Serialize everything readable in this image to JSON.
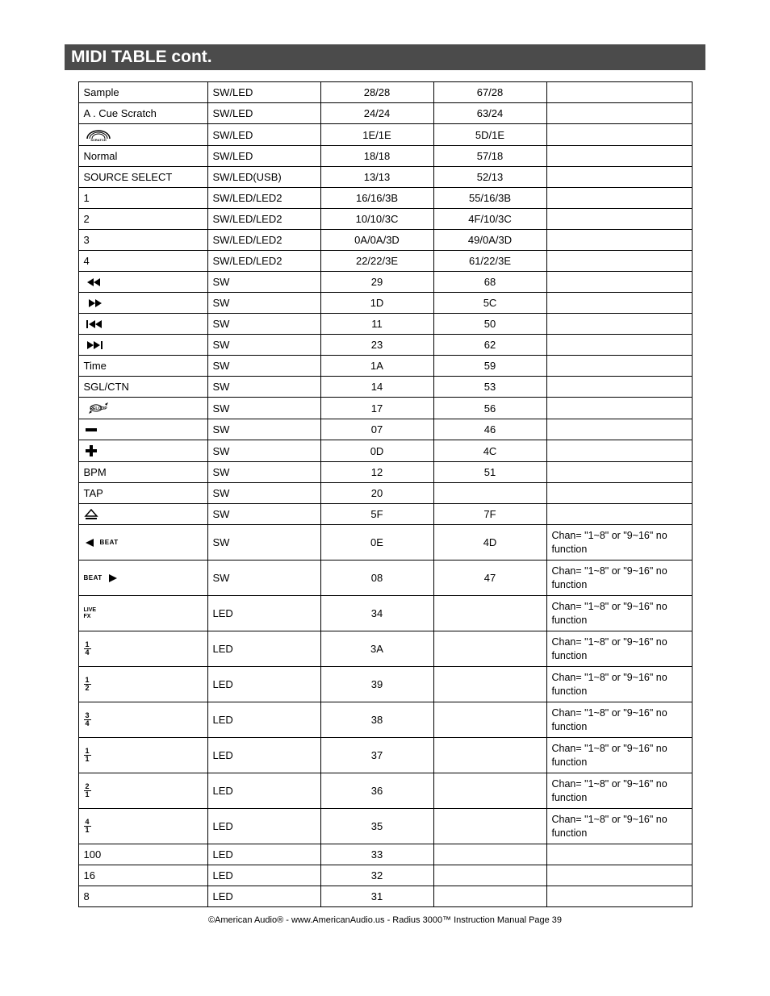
{
  "title": "MIDI TABLE cont.",
  "colors": {
    "header_bg": "#4b4b4b",
    "header_fg": "#ffffff",
    "border": "#000000"
  },
  "rows": [
    {
      "c0_type": "text",
      "c0": "Sample",
      "c1": "SW/LED",
      "c2": "28/28",
      "c3": "67/28",
      "c4": ""
    },
    {
      "c0_type": "text",
      "c0": "A . Cue  Scratch",
      "c1": "SW/LED",
      "c2": "24/24",
      "c3": "63/24",
      "c4": ""
    },
    {
      "c0_type": "icon",
      "icon": "scratch",
      "c1": "SW/LED",
      "c2": "1E/1E",
      "c3": "5D/1E",
      "c4": ""
    },
    {
      "c0_type": "text",
      "c0": "Normal",
      "c1": "SW/LED",
      "c2": "18/18",
      "c3": "57/18",
      "c4": ""
    },
    {
      "c0_type": "text",
      "c0": "SOURCE  SELECT",
      "c1": "SW/LED(USB)",
      "c2": "13/13",
      "c3": "52/13",
      "c4": ""
    },
    {
      "c0_type": "text",
      "c0": "1",
      "c1": "SW/LED/LED2",
      "c2": "16/16/3B",
      "c3": "55/16/3B",
      "c4": ""
    },
    {
      "c0_type": "text",
      "c0": "2",
      "c1": "SW/LED/LED2",
      "c2": "10/10/3C",
      "c3": "4F/10/3C",
      "c4": ""
    },
    {
      "c0_type": "text",
      "c0": "3",
      "c1": "SW/LED/LED2",
      "c2": "0A/0A/3D",
      "c3": "49/0A/3D",
      "c4": ""
    },
    {
      "c0_type": "text",
      "c0": "4",
      "c1": "SW/LED/LED2",
      "c2": "22/22/3E",
      "c3": "61/22/3E",
      "c4": ""
    },
    {
      "c0_type": "icon",
      "icon": "seek-rev",
      "c1": "SW",
      "c2": "29",
      "c3": "68",
      "c4": ""
    },
    {
      "c0_type": "icon",
      "icon": "seek-fwd",
      "c1": "SW",
      "c2": "1D",
      "c3": "5C",
      "c4": ""
    },
    {
      "c0_type": "icon",
      "icon": "skip-rev",
      "c1": "SW",
      "c2": "11",
      "c3": "50",
      "c4": ""
    },
    {
      "c0_type": "icon",
      "icon": "skip-fwd",
      "c1": "SW",
      "c2": "23",
      "c3": "62",
      "c4": ""
    },
    {
      "c0_type": "text",
      "c0": "Time",
      "c1": "SW",
      "c2": "1A",
      "c3": "59",
      "c4": ""
    },
    {
      "c0_type": "text",
      "c0": "SGL/CTN",
      "c1": "SW",
      "c2": "14",
      "c3": "53",
      "c4": ""
    },
    {
      "c0_type": "icon",
      "icon": "reloop",
      "c1": "SW",
      "c2": "17",
      "c3": "56",
      "c4": ""
    },
    {
      "c0_type": "icon",
      "icon": "minus",
      "c1": "SW",
      "c2": "07",
      "c3": "46",
      "c4": ""
    },
    {
      "c0_type": "icon",
      "icon": "plus",
      "c1": "SW",
      "c2": "0D",
      "c3": "4C",
      "c4": ""
    },
    {
      "c0_type": "text",
      "c0": "BPM",
      "c1": "SW",
      "c2": "12",
      "c3": "51",
      "c4": ""
    },
    {
      "c0_type": "text",
      "c0": "TAP",
      "c1": "SW",
      "c2": "20",
      "c3": "",
      "c4": ""
    },
    {
      "c0_type": "icon",
      "icon": "eject",
      "c1": "SW",
      "c2": "5F",
      "c3": "7F",
      "c4": ""
    },
    {
      "c0_type": "icon",
      "icon": "beat-left",
      "c1": "SW",
      "c2": "0E",
      "c3": "4D",
      "c4": "Chan= \"1~8\" or \"9~16\" no function",
      "tall": true
    },
    {
      "c0_type": "icon",
      "icon": "beat-right",
      "c1": "SW",
      "c2": "08",
      "c3": "47",
      "c4": "Chan= \"1~8\" or \"9~16\" no function",
      "tall": true
    },
    {
      "c0_type": "icon",
      "icon": "livefx",
      "c1": "LED",
      "c2": "34",
      "c3": "",
      "c4": "Chan= \"1~8\" or \"9~16\" no function",
      "tall": true
    },
    {
      "c0_type": "frac",
      "num": "1",
      "den": "4",
      "c1": "LED",
      "c2": "3A",
      "c3": "",
      "c4": "Chan= \"1~8\" or \"9~16\" no function",
      "tall": true
    },
    {
      "c0_type": "frac",
      "num": "1",
      "den": "2",
      "c1": "LED",
      "c2": "39",
      "c3": "",
      "c4": "Chan= \"1~8\" or \"9~16\" no function",
      "tall": true
    },
    {
      "c0_type": "frac",
      "num": "3",
      "den": "4",
      "c1": "LED",
      "c2": "38",
      "c3": "",
      "c4": "Chan= \"1~8\" or \"9~16\" no function",
      "tall": true
    },
    {
      "c0_type": "frac",
      "num": "1",
      "den": "1",
      "c1": "LED",
      "c2": "37",
      "c3": "",
      "c4": "Chan= \"1~8\" or \"9~16\" no function",
      "tall": true
    },
    {
      "c0_type": "frac",
      "num": "2",
      "den": "1",
      "c1": "LED",
      "c2": "36",
      "c3": "",
      "c4": "Chan= \"1~8\" or \"9~16\" no function",
      "tall": true
    },
    {
      "c0_type": "frac",
      "num": "4",
      "den": "1",
      "c1": "LED",
      "c2": "35",
      "c3": "",
      "c4": "Chan= \"1~8\" or \"9~16\" no function",
      "tall": true
    },
    {
      "c0_type": "text",
      "c0": "100",
      "c1": "LED",
      "c2": "33",
      "c3": "",
      "c4": ""
    },
    {
      "c0_type": "text",
      "c0": "16",
      "c1": "LED",
      "c2": "32",
      "c3": "",
      "c4": ""
    },
    {
      "c0_type": "text",
      "c0": "8",
      "c1": "LED",
      "c2": "31",
      "c3": "",
      "c4": ""
    }
  ],
  "footer": "©American Audio®   -   www.AmericanAudio.us   -   Radius 3000™ Instruction Manual Page 39"
}
